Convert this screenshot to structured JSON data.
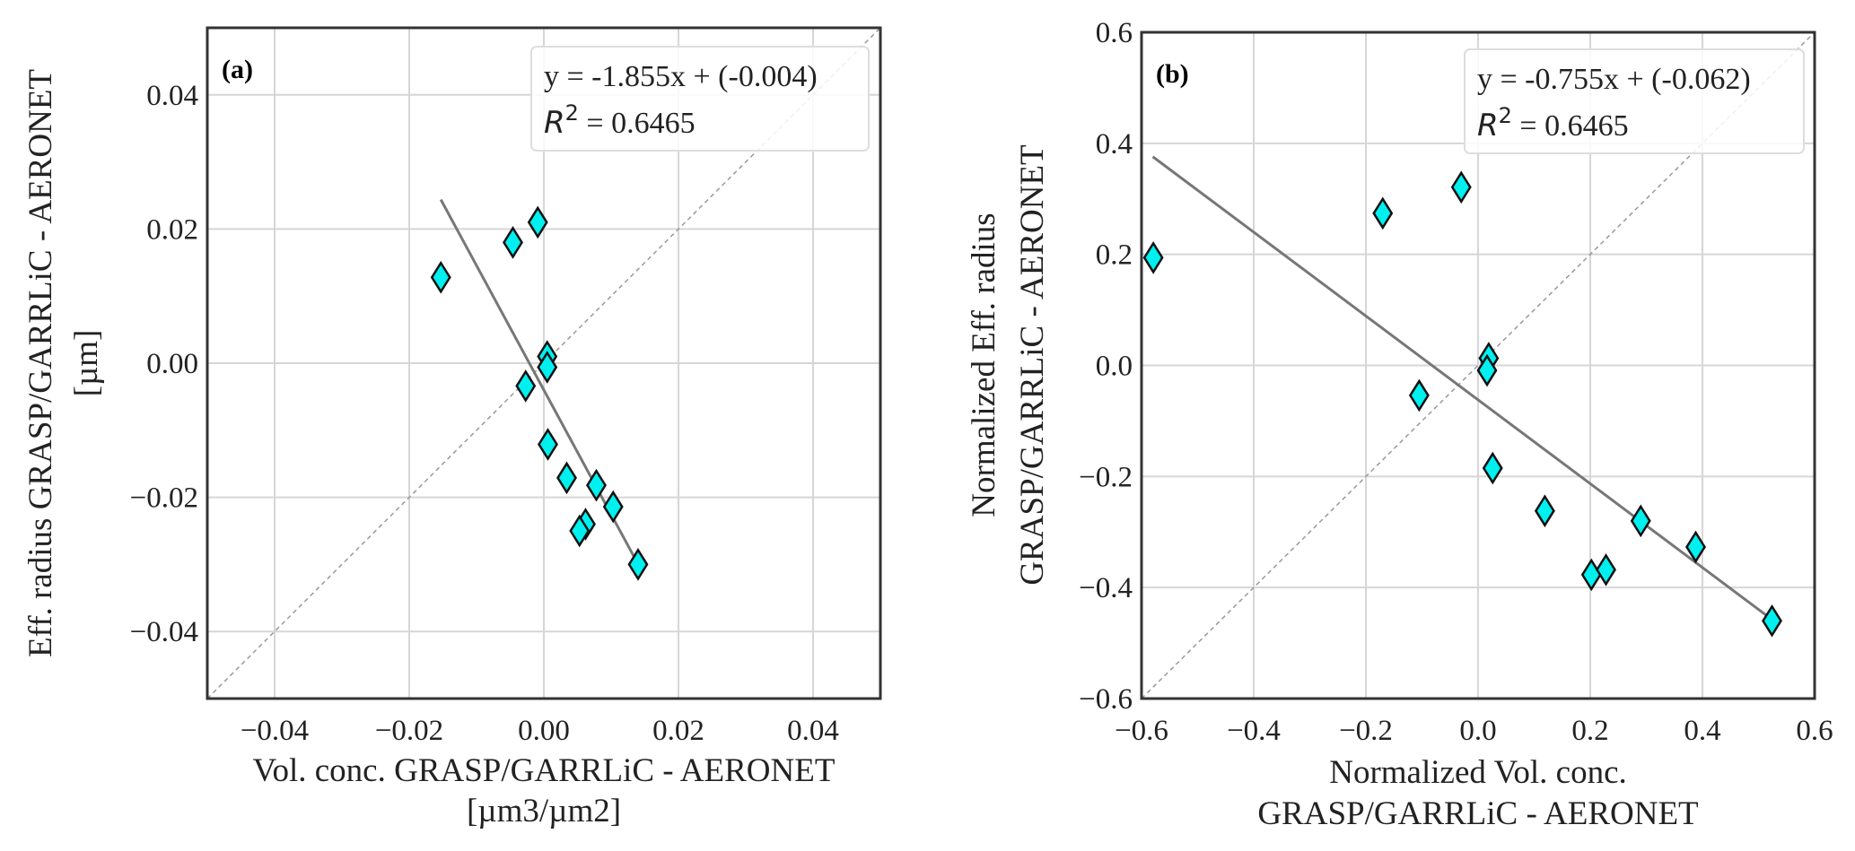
{
  "chart_data": [
    {
      "type": "scatter",
      "panel_label": "(a)",
      "xlabel": [
        "Vol. conc. GRASP/GARRLiC - AERONET",
        "[µm3/µm2]"
      ],
      "ylabel": [
        "Eff. radius GRASP/GARRLiC - AERONET",
        "[µm]"
      ],
      "xlim": [
        -0.05,
        0.05
      ],
      "ylim": [
        -0.05,
        0.05
      ],
      "x_ticks": [
        -0.04,
        -0.02,
        0.0,
        0.02,
        0.04
      ],
      "x_tick_labels": [
        "−0.04",
        "−0.02",
        "0.00",
        "0.02",
        "0.04"
      ],
      "y_ticks": [
        -0.04,
        -0.02,
        0.0,
        0.02,
        0.04
      ],
      "y_tick_labels": [
        "−0.04",
        "−0.02",
        "0.00",
        "0.02",
        "0.04"
      ],
      "grid": true,
      "legend_placement": "top-right",
      "fit": {
        "slope": -1.855,
        "intercept": -0.004,
        "x_range": [
          -0.0153,
          0.014
        ],
        "equation": "y = -1.855x + (-0.004)",
        "r2_symbol": "R",
        "r2_exp": "2",
        "r2_text": " = 0.6465"
      },
      "one_to_one_line": true,
      "marker_color": "#00f0f0",
      "points": [
        {
          "x": -0.0153,
          "y": 0.0128
        },
        {
          "x": -0.0046,
          "y": 0.018
        },
        {
          "x": -0.0009,
          "y": 0.021
        },
        {
          "x": 0.0005,
          "y": 0.001
        },
        {
          "x": 0.0005,
          "y": -0.0006
        },
        {
          "x": -0.0027,
          "y": -0.0034
        },
        {
          "x": 0.0006,
          "y": -0.0121
        },
        {
          "x": 0.0034,
          "y": -0.0171
        },
        {
          "x": 0.0078,
          "y": -0.0182
        },
        {
          "x": 0.0103,
          "y": -0.0214
        },
        {
          "x": 0.0062,
          "y": -0.024
        },
        {
          "x": 0.0053,
          "y": -0.025
        },
        {
          "x": 0.014,
          "y": -0.03
        }
      ]
    },
    {
      "type": "scatter",
      "panel_label": "(b)",
      "xlabel": [
        "Normalized Vol. conc.",
        "GRASP/GARRLiC - AERONET"
      ],
      "ylabel": [
        "Normalized Eff. radius",
        "GRASP/GARRLiC - AERONET"
      ],
      "xlim": [
        -0.6,
        0.6
      ],
      "ylim": [
        -0.6,
        0.6
      ],
      "x_ticks": [
        -0.6,
        -0.4,
        -0.2,
        0.0,
        0.2,
        0.4,
        0.6
      ],
      "x_tick_labels": [
        "−0.6",
        "−0.4",
        "−0.2",
        "0.0",
        "0.2",
        "0.4",
        "0.6"
      ],
      "y_ticks": [
        -0.6,
        -0.4,
        -0.2,
        0.0,
        0.2,
        0.4,
        0.6
      ],
      "y_tick_labels": [
        "−0.6",
        "−0.4",
        "−0.2",
        "0.0",
        "0.2",
        "0.4",
        "0.6"
      ],
      "grid": true,
      "legend_placement": "top-right",
      "fit": {
        "slope": -0.755,
        "intercept": -0.062,
        "x_range": [
          -0.58,
          0.53
        ],
        "equation": "y = -0.755x + (-0.062)",
        "r2_symbol": "R",
        "r2_exp": "2",
        "r2_text": " = 0.6465"
      },
      "one_to_one_line": true,
      "marker_color": "#00f0f0",
      "points": [
        {
          "x": -0.579,
          "y": 0.194
        },
        {
          "x": -0.17,
          "y": 0.274
        },
        {
          "x": -0.03,
          "y": 0.321
        },
        {
          "x": 0.019,
          "y": 0.013
        },
        {
          "x": 0.016,
          "y": -0.009
        },
        {
          "x": -0.105,
          "y": -0.054
        },
        {
          "x": 0.026,
          "y": -0.185
        },
        {
          "x": 0.119,
          "y": -0.262
        },
        {
          "x": 0.202,
          "y": -0.377
        },
        {
          "x": 0.228,
          "y": -0.368
        },
        {
          "x": 0.29,
          "y": -0.28
        },
        {
          "x": 0.388,
          "y": -0.327
        },
        {
          "x": 0.524,
          "y": -0.46
        }
      ]
    }
  ]
}
